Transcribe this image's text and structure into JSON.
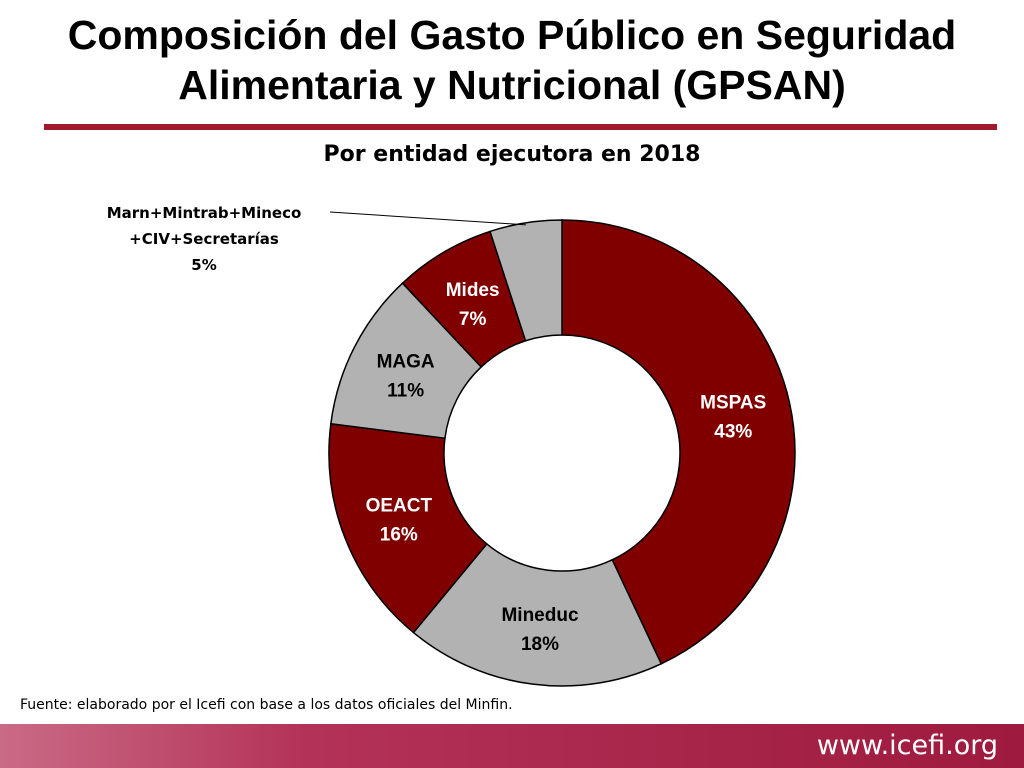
{
  "header": {
    "title_line1": "Composición del Gasto Público en Seguridad",
    "title_line2": "Alimentaria y Nutricional (GPSAN)"
  },
  "chart_data": {
    "type": "pie",
    "variant": "donut",
    "title": "Por entidad ejecutora en 2018",
    "categories": [
      "MSPAS",
      "Mineduc",
      "OEACT",
      "MAGA",
      "Mides",
      "Marn+Mintrab+Mineco+CIV+Secretarías"
    ],
    "values": [
      43,
      18,
      16,
      11,
      7,
      5
    ],
    "value_labels": [
      "43%",
      "18%",
      "16%",
      "11%",
      "7%",
      "5%"
    ],
    "callout_lines": [
      "Marn+Mintrab+Mineco",
      "+CIV+Secretarías",
      "5%"
    ],
    "colors": [
      "#800000",
      "#b2b2b2",
      "#800000",
      "#b2b2b2",
      "#800000",
      "#b2b2b2"
    ],
    "label_colors": [
      "#ffffff",
      "#000000",
      "#ffffff",
      "#000000",
      "#ffffff",
      "#000000"
    ],
    "start_angle": "12 o'clock",
    "direction": "clockwise"
  },
  "source": "Fuente: elaborado por el Icefi con base a los datos oficiales del Minfin.",
  "footer": {
    "url": "www.icefi.org",
    "band_color": "#a11a3e"
  }
}
